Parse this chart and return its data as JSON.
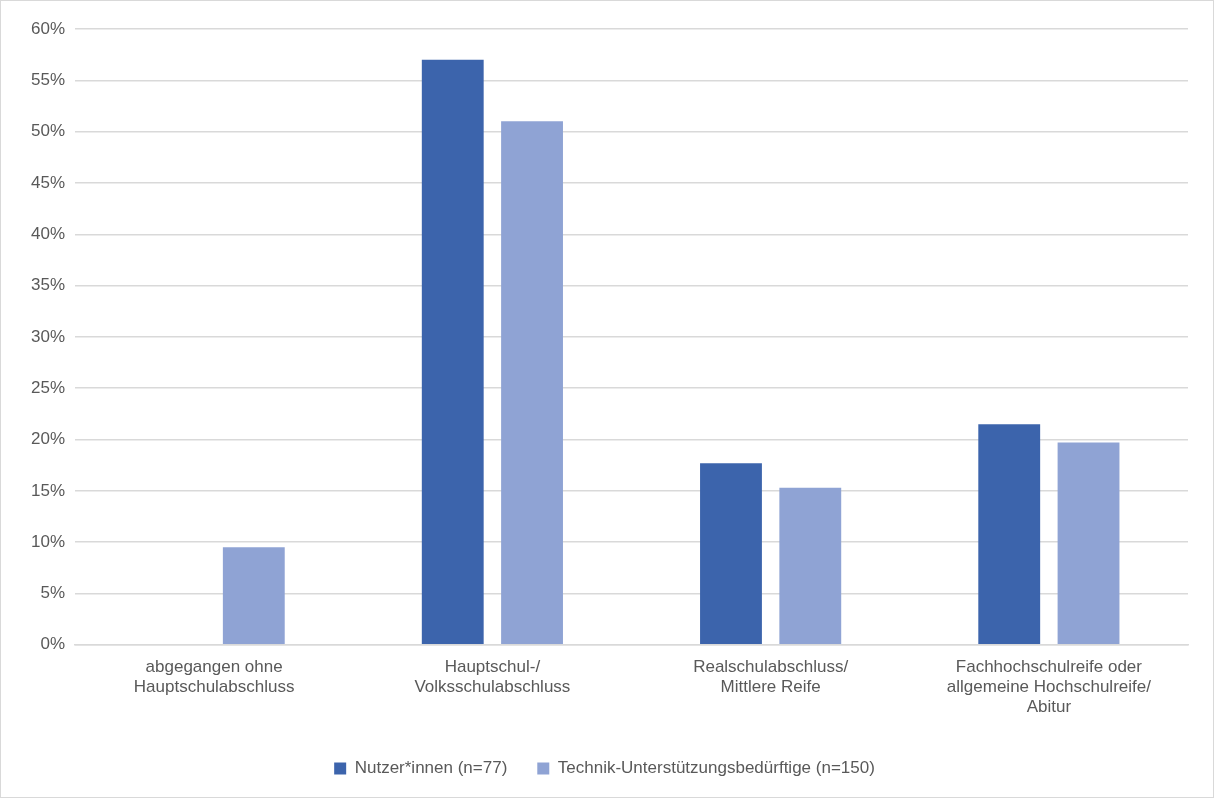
{
  "chart_data": {
    "type": "bar",
    "categories": [
      "abgegangen ohne Hauptschulabschluss",
      "Hauptschul-/ Volksschulabschluss",
      "Realschulabschluss/ Mittlere Reife",
      "Fachhochschulreife oder allgemeine Hochschulreife/ Abitur"
    ],
    "series": [
      {
        "name": "Nutzer*innen (n=77)",
        "color": "#3c64ac",
        "values": [
          0,
          57,
          17.7,
          21.5
        ]
      },
      {
        "name": "Technik-Unterstützungsbedürftige (n=150)",
        "color": "#8fa3d4",
        "values": [
          9.5,
          51,
          15.3,
          19.7
        ]
      }
    ],
    "ylim": [
      0,
      60
    ],
    "yticks": [
      {
        "value": 0,
        "label": "0%"
      },
      {
        "value": 5,
        "label": "5%"
      },
      {
        "value": 10,
        "label": "10%"
      },
      {
        "value": 15,
        "label": "15%"
      },
      {
        "value": 20,
        "label": "20%"
      },
      {
        "value": 25,
        "label": "25%"
      },
      {
        "value": 30,
        "label": "30%"
      },
      {
        "value": 35,
        "label": "35%"
      },
      {
        "value": 40,
        "label": "40%"
      },
      {
        "value": 45,
        "label": "45%"
      },
      {
        "value": 50,
        "label": "50%"
      },
      {
        "value": 55,
        "label": "55%"
      },
      {
        "value": 60,
        "label": "60%"
      }
    ],
    "grid": "y",
    "legend": "bottom"
  }
}
